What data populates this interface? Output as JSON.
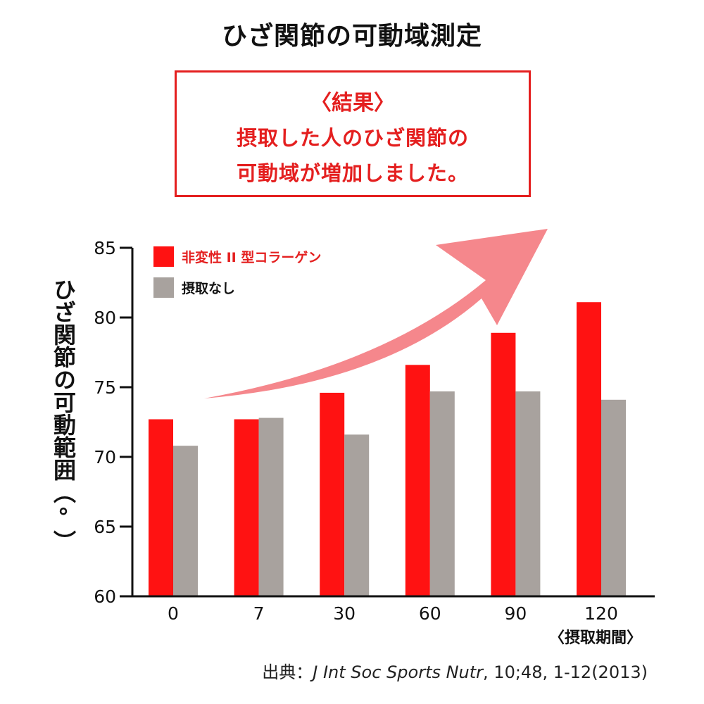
{
  "title": "ひざ関節の可動域測定",
  "result_box": {
    "heading": "〈結果〉",
    "line1": "摂取した人のひざ関節の",
    "line2": "可動域が増加しました。"
  },
  "chart_data": {
    "type": "bar",
    "ylabel": "ひざ関節の可動範囲（°）",
    "xlabel": "〈摂取期間〉",
    "categories": [
      "0",
      "7",
      "30",
      "60",
      "90",
      "120"
    ],
    "ylim": [
      60,
      85
    ],
    "yticks": [
      60,
      65,
      70,
      75,
      80,
      85
    ],
    "series": [
      {
        "name": "非変性 II 型コラーゲン",
        "color": "#ff1212",
        "values": [
          72.7,
          72.7,
          74.6,
          76.6,
          78.9,
          81.1
        ]
      },
      {
        "name": "摂取なし",
        "color": "#a8a29e",
        "values": [
          70.8,
          72.8,
          71.6,
          74.7,
          74.7,
          74.1
        ]
      }
    ],
    "legend_position": "top-left",
    "grid": false,
    "arrow_color": "#f47a80"
  },
  "source": {
    "prefix": "出典：",
    "journal": "J Int Soc Sports Nutr",
    "rest": ", 10;48, 1-12(2013)"
  }
}
